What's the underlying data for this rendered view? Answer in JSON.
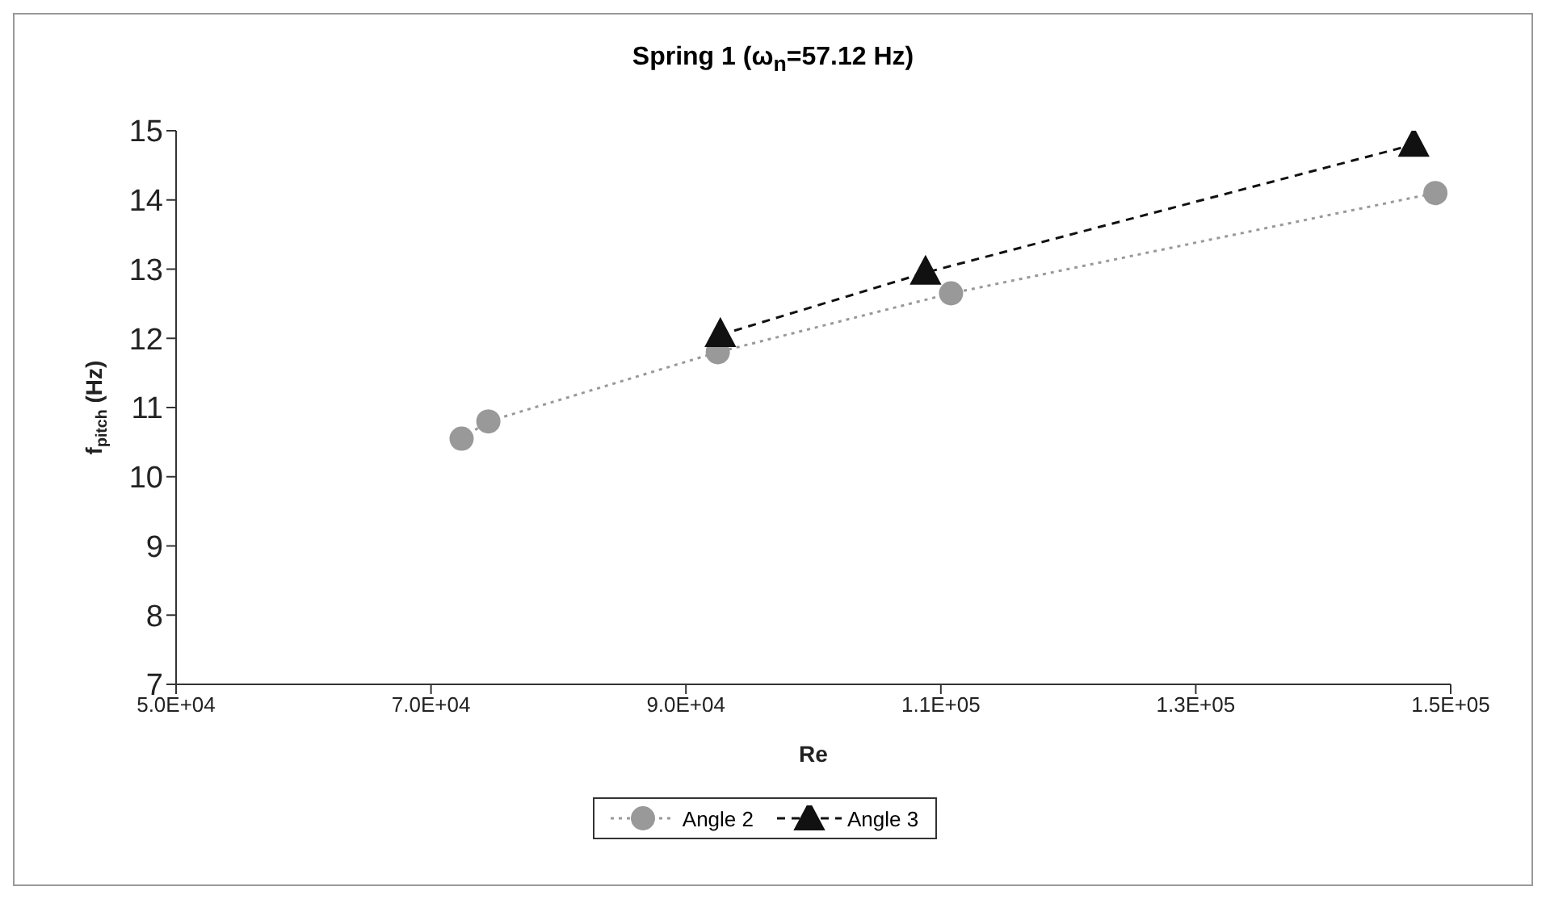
{
  "chart_data": {
    "type": "line",
    "title": "Spring 1 (ω$_{n}$=57.12 Hz)",
    "xlabel": "Re",
    "ylabel": "f$_{pitch}$ (Hz)",
    "xlim": [
      50000,
      150000
    ],
    "xticks": [
      {
        "value": 50000,
        "label": "5.0E+04"
      },
      {
        "value": 70000,
        "label": "7.0E+04"
      },
      {
        "value": 90000,
        "label": "9.0E+04"
      },
      {
        "value": 110000,
        "label": "1.1E+05"
      },
      {
        "value": 130000,
        "label": "1.3E+05"
      },
      {
        "value": 150000,
        "label": "1.5E+05"
      }
    ],
    "ylim": [
      7,
      15
    ],
    "yticks": [
      7,
      8,
      9,
      10,
      11,
      12,
      13,
      14,
      15
    ],
    "legend": "bottom",
    "series": [
      {
        "name": "Angle 2",
        "color": "#999999",
        "marker": "circle",
        "line_style": "dotted",
        "x": [
          72400,
          74500,
          92500,
          110800,
          148800
        ],
        "values": [
          10.55,
          10.8,
          11.8,
          12.65,
          14.1
        ]
      },
      {
        "name": "Angle 3",
        "color": "#111111",
        "marker": "triangle",
        "line_style": "dashed",
        "x": [
          92700,
          108800,
          147100
        ],
        "values": [
          12.05,
          12.95,
          14.8
        ]
      }
    ]
  }
}
